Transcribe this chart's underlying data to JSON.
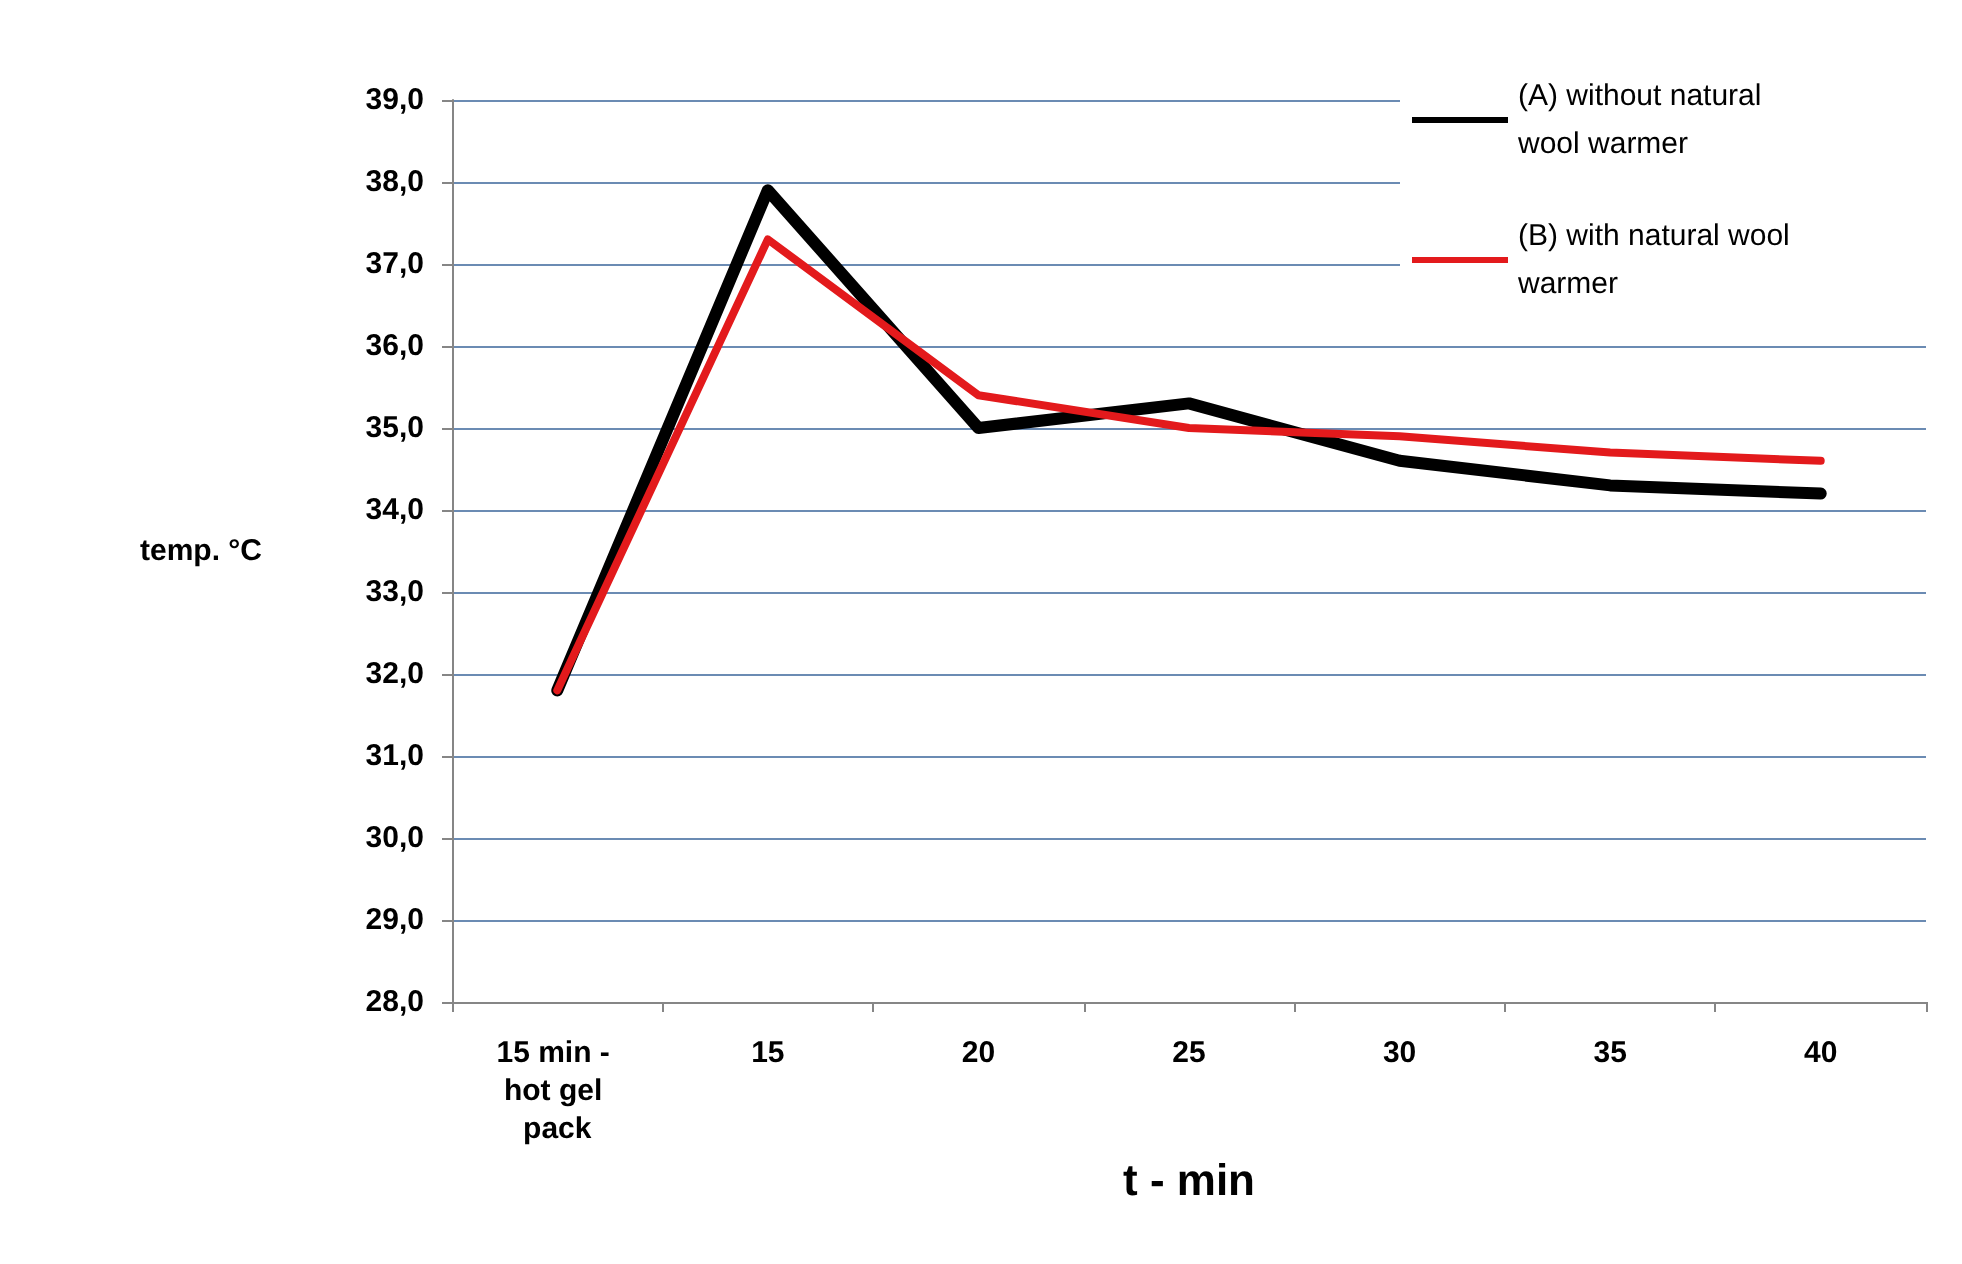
{
  "chart_data": {
    "type": "line",
    "xlabel": "t - min",
    "ylabel": "temp. °C",
    "categories": [
      "15 min - hot gel pack",
      "15",
      "20",
      "25",
      "30",
      "35",
      "40"
    ],
    "series": [
      {
        "name": "(A) without natural wool warmer",
        "color": "#000000",
        "values": [
          31.8,
          37.9,
          35.0,
          35.3,
          34.6,
          34.3,
          34.2
        ]
      },
      {
        "name": "(B) with natural wool warmer",
        "color": "#e31a1c",
        "values": [
          31.8,
          37.3,
          35.4,
          35.0,
          34.9,
          34.7,
          34.6
        ]
      }
    ],
    "ylim": [
      28,
      39
    ],
    "yticks": [
      {
        "value": 28,
        "label": "28,0"
      },
      {
        "value": 29,
        "label": "29,0"
      },
      {
        "value": 30,
        "label": "30,0"
      },
      {
        "value": 31,
        "label": "31,0"
      },
      {
        "value": 32,
        "label": "32,0"
      },
      {
        "value": 33,
        "label": "33,0"
      },
      {
        "value": 34,
        "label": "34,0"
      },
      {
        "value": 35,
        "label": "35,0"
      },
      {
        "value": 36,
        "label": "36,0"
      },
      {
        "value": 37,
        "label": "37,0"
      },
      {
        "value": 38,
        "label": "38,0"
      },
      {
        "value": 39,
        "label": "39,0"
      }
    ],
    "grid": "y",
    "legend": "top right",
    "marker": "none",
    "line_style": "solid"
  }
}
